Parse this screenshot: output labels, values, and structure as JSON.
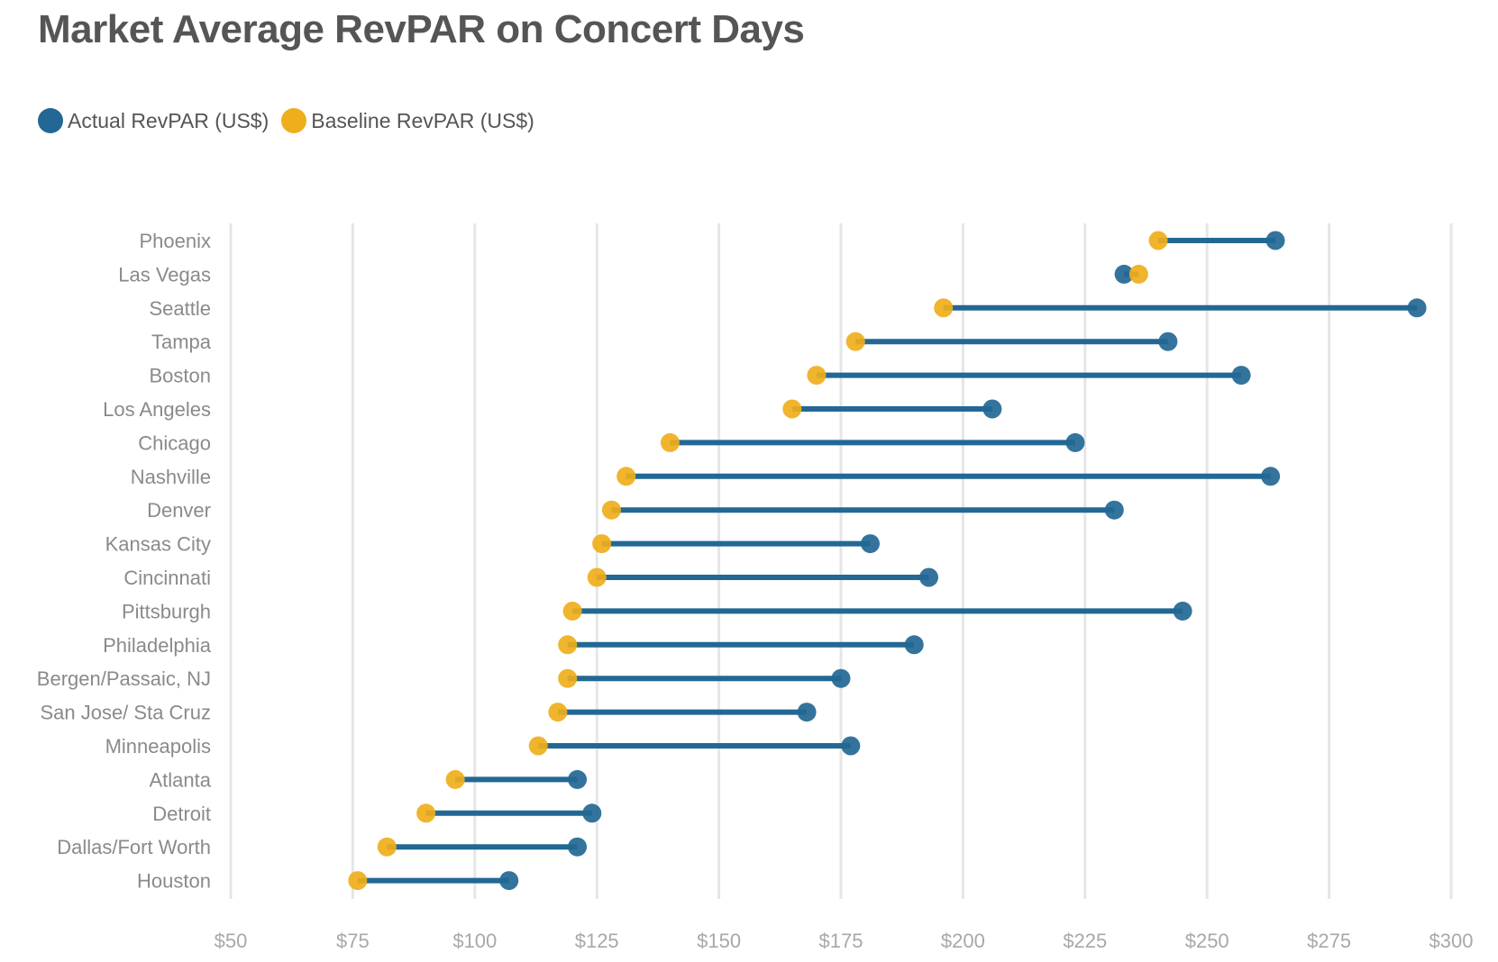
{
  "chart_data": {
    "type": "dumbbell",
    "title": "Market Average RevPAR on Concert Days",
    "categories": [
      "Phoenix",
      "Las Vegas",
      "Seattle",
      "Tampa",
      "Boston",
      "Los Angeles",
      "Chicago",
      "Nashville",
      "Denver",
      "Kansas City",
      "Cincinnati",
      "Pittsburgh",
      "Philadelphia",
      "Bergen/Passaic, NJ",
      "San Jose/ Sta Cruz",
      "Minneapolis",
      "Atlanta",
      "Detroit",
      "Dallas/Fort Worth",
      "Houston"
    ],
    "series": [
      {
        "name": "Actual RevPAR (US$)",
        "color": "#236894",
        "values": [
          264,
          233,
          293,
          242,
          257,
          206,
          223,
          263,
          231,
          181,
          193,
          245,
          190,
          175,
          168,
          177,
          121,
          124,
          121,
          107
        ]
      },
      {
        "name": "Baseline RevPAR (US$)",
        "color": "#efae1b",
        "values": [
          240,
          236,
          196,
          178,
          170,
          165,
          140,
          131,
          128,
          126,
          125,
          120,
          119,
          119,
          117,
          113,
          96,
          90,
          82,
          76
        ]
      }
    ],
    "xlim": [
      50,
      300
    ],
    "xticks": [
      50,
      75,
      100,
      125,
      150,
      175,
      200,
      225,
      250,
      275,
      300
    ],
    "tick_labels": [
      "$50",
      "$75",
      "$100",
      "$125",
      "$150",
      "$175",
      "$200",
      "$225",
      "$250",
      "$275",
      "$300"
    ],
    "xlabel": "",
    "ylabel": "",
    "grid": true,
    "legend_position": "top-left"
  }
}
